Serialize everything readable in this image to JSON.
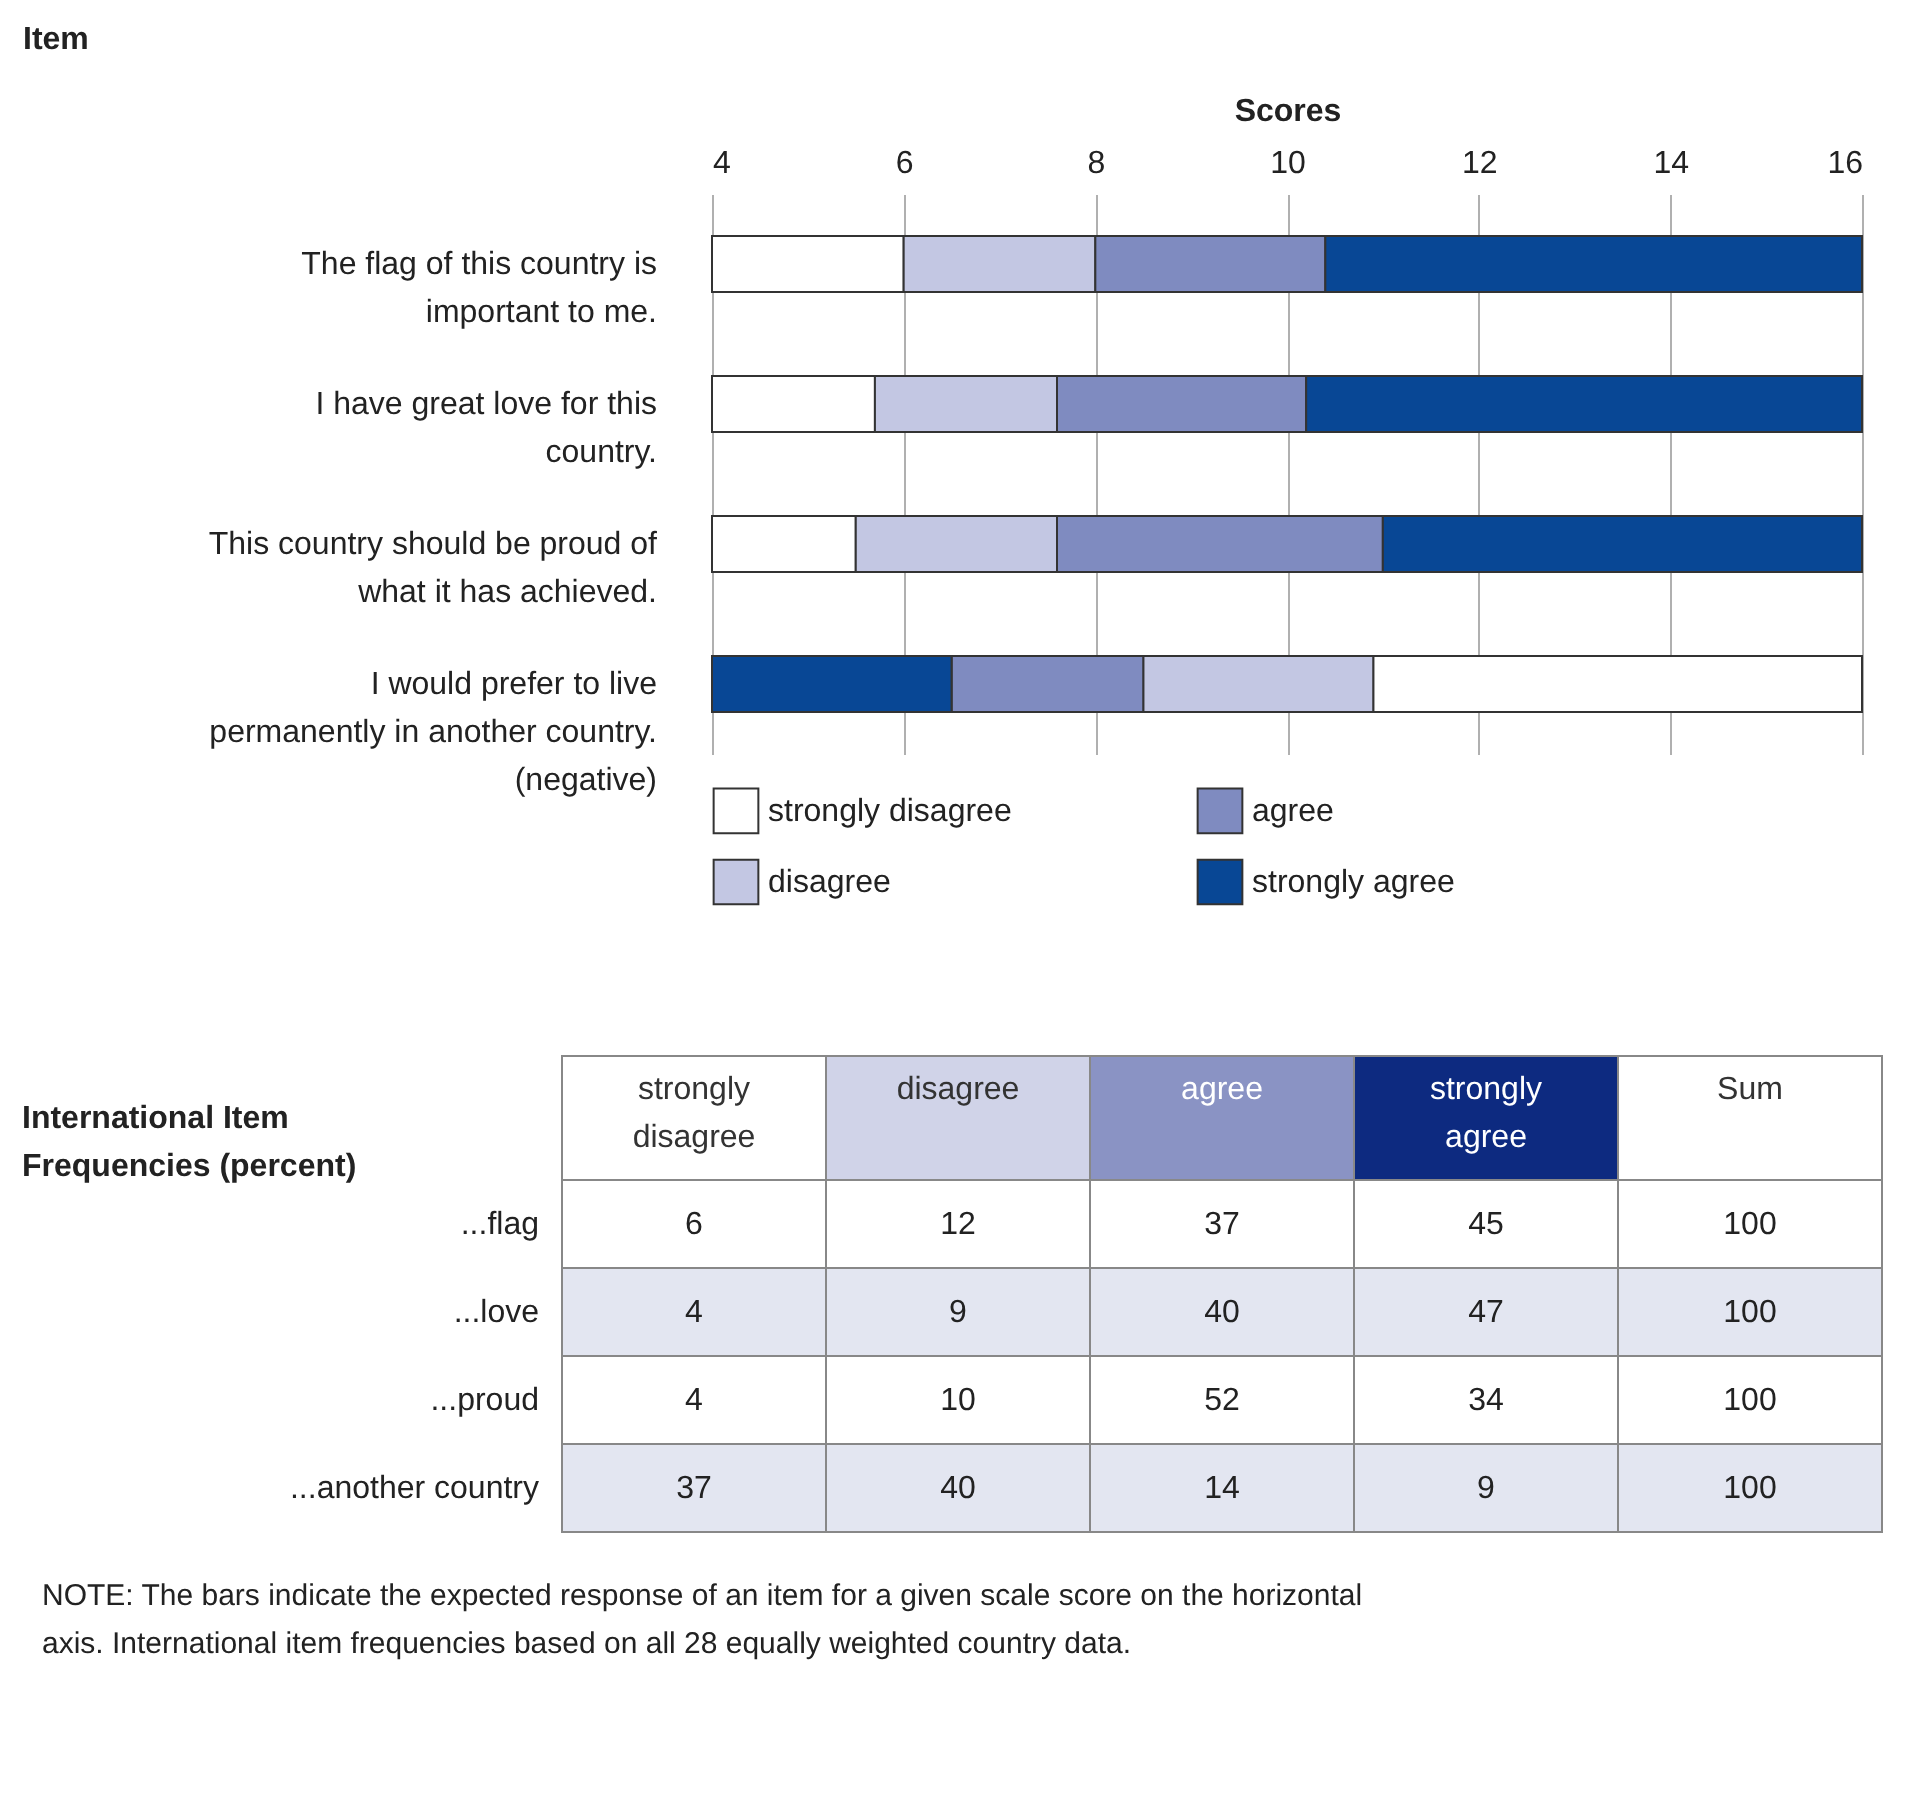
{
  "chart_data": [
    {
      "type": "bar",
      "orientation": "horizontal",
      "ylabel": "Item",
      "xlabel": "Scores",
      "categories": [
        "The flag of this country is important to me.",
        "I have great love for this country.",
        "This country should be proud of what it has achieved.",
        "I would prefer to live permanently in another country. (negative)"
      ],
      "series": [
        {
          "name": "strongly disagree",
          "color": "#ffffff",
          "base": [
            4,
            4,
            4,
            10.9
          ],
          "values": [
            2,
            1.7,
            1.5,
            5.1
          ]
        },
        {
          "name": "disagree",
          "color": "#c3c7e3",
          "base": [
            6,
            5.7,
            5.5,
            8.5
          ],
          "values": [
            2,
            1.9,
            2.1,
            2.4
          ]
        },
        {
          "name": "agree",
          "color": "#7f8bc0",
          "base": [
            8,
            7.6,
            7.6,
            6.5
          ],
          "values": [
            2.4,
            2.6,
            3.4,
            2.0
          ]
        },
        {
          "name": "strongly agree",
          "color": "#084795",
          "base": [
            10.4,
            10.2,
            11,
            4
          ],
          "values": [
            5.6,
            5.8,
            5,
            2.5
          ]
        }
      ],
      "xlim": [
        4,
        16
      ],
      "xticks": [
        4,
        6,
        8,
        10,
        12,
        14,
        16
      ],
      "grid": "x",
      "legend": "bottom"
    },
    {
      "type": "heatmap",
      "title": "International Item Frequencies (percent)",
      "categories": [
        "strongly disagree",
        "disagree",
        "agree",
        "strongly agree",
        "Sum"
      ],
      "colors": [
        "#ffffff",
        "#d0d3e8",
        "#8a93c4",
        "#0d2a80",
        "#ffffff"
      ],
      "y_categories": [
        "...flag",
        "...love",
        "...proud",
        "...another country"
      ],
      "cells": [
        [
          6,
          12,
          37,
          45,
          100
        ],
        [
          4,
          9,
          40,
          47,
          100
        ],
        [
          4,
          10,
          52,
          34,
          100
        ],
        [
          37,
          40,
          14,
          9,
          100
        ]
      ],
      "data_labels": true,
      "annotations": [
        "NOTE: The bars indicate the expected response of an item for a given scale score on the horizontal axis. International item frequencies based on all 28 equally weighted country data."
      ]
    }
  ]
}
